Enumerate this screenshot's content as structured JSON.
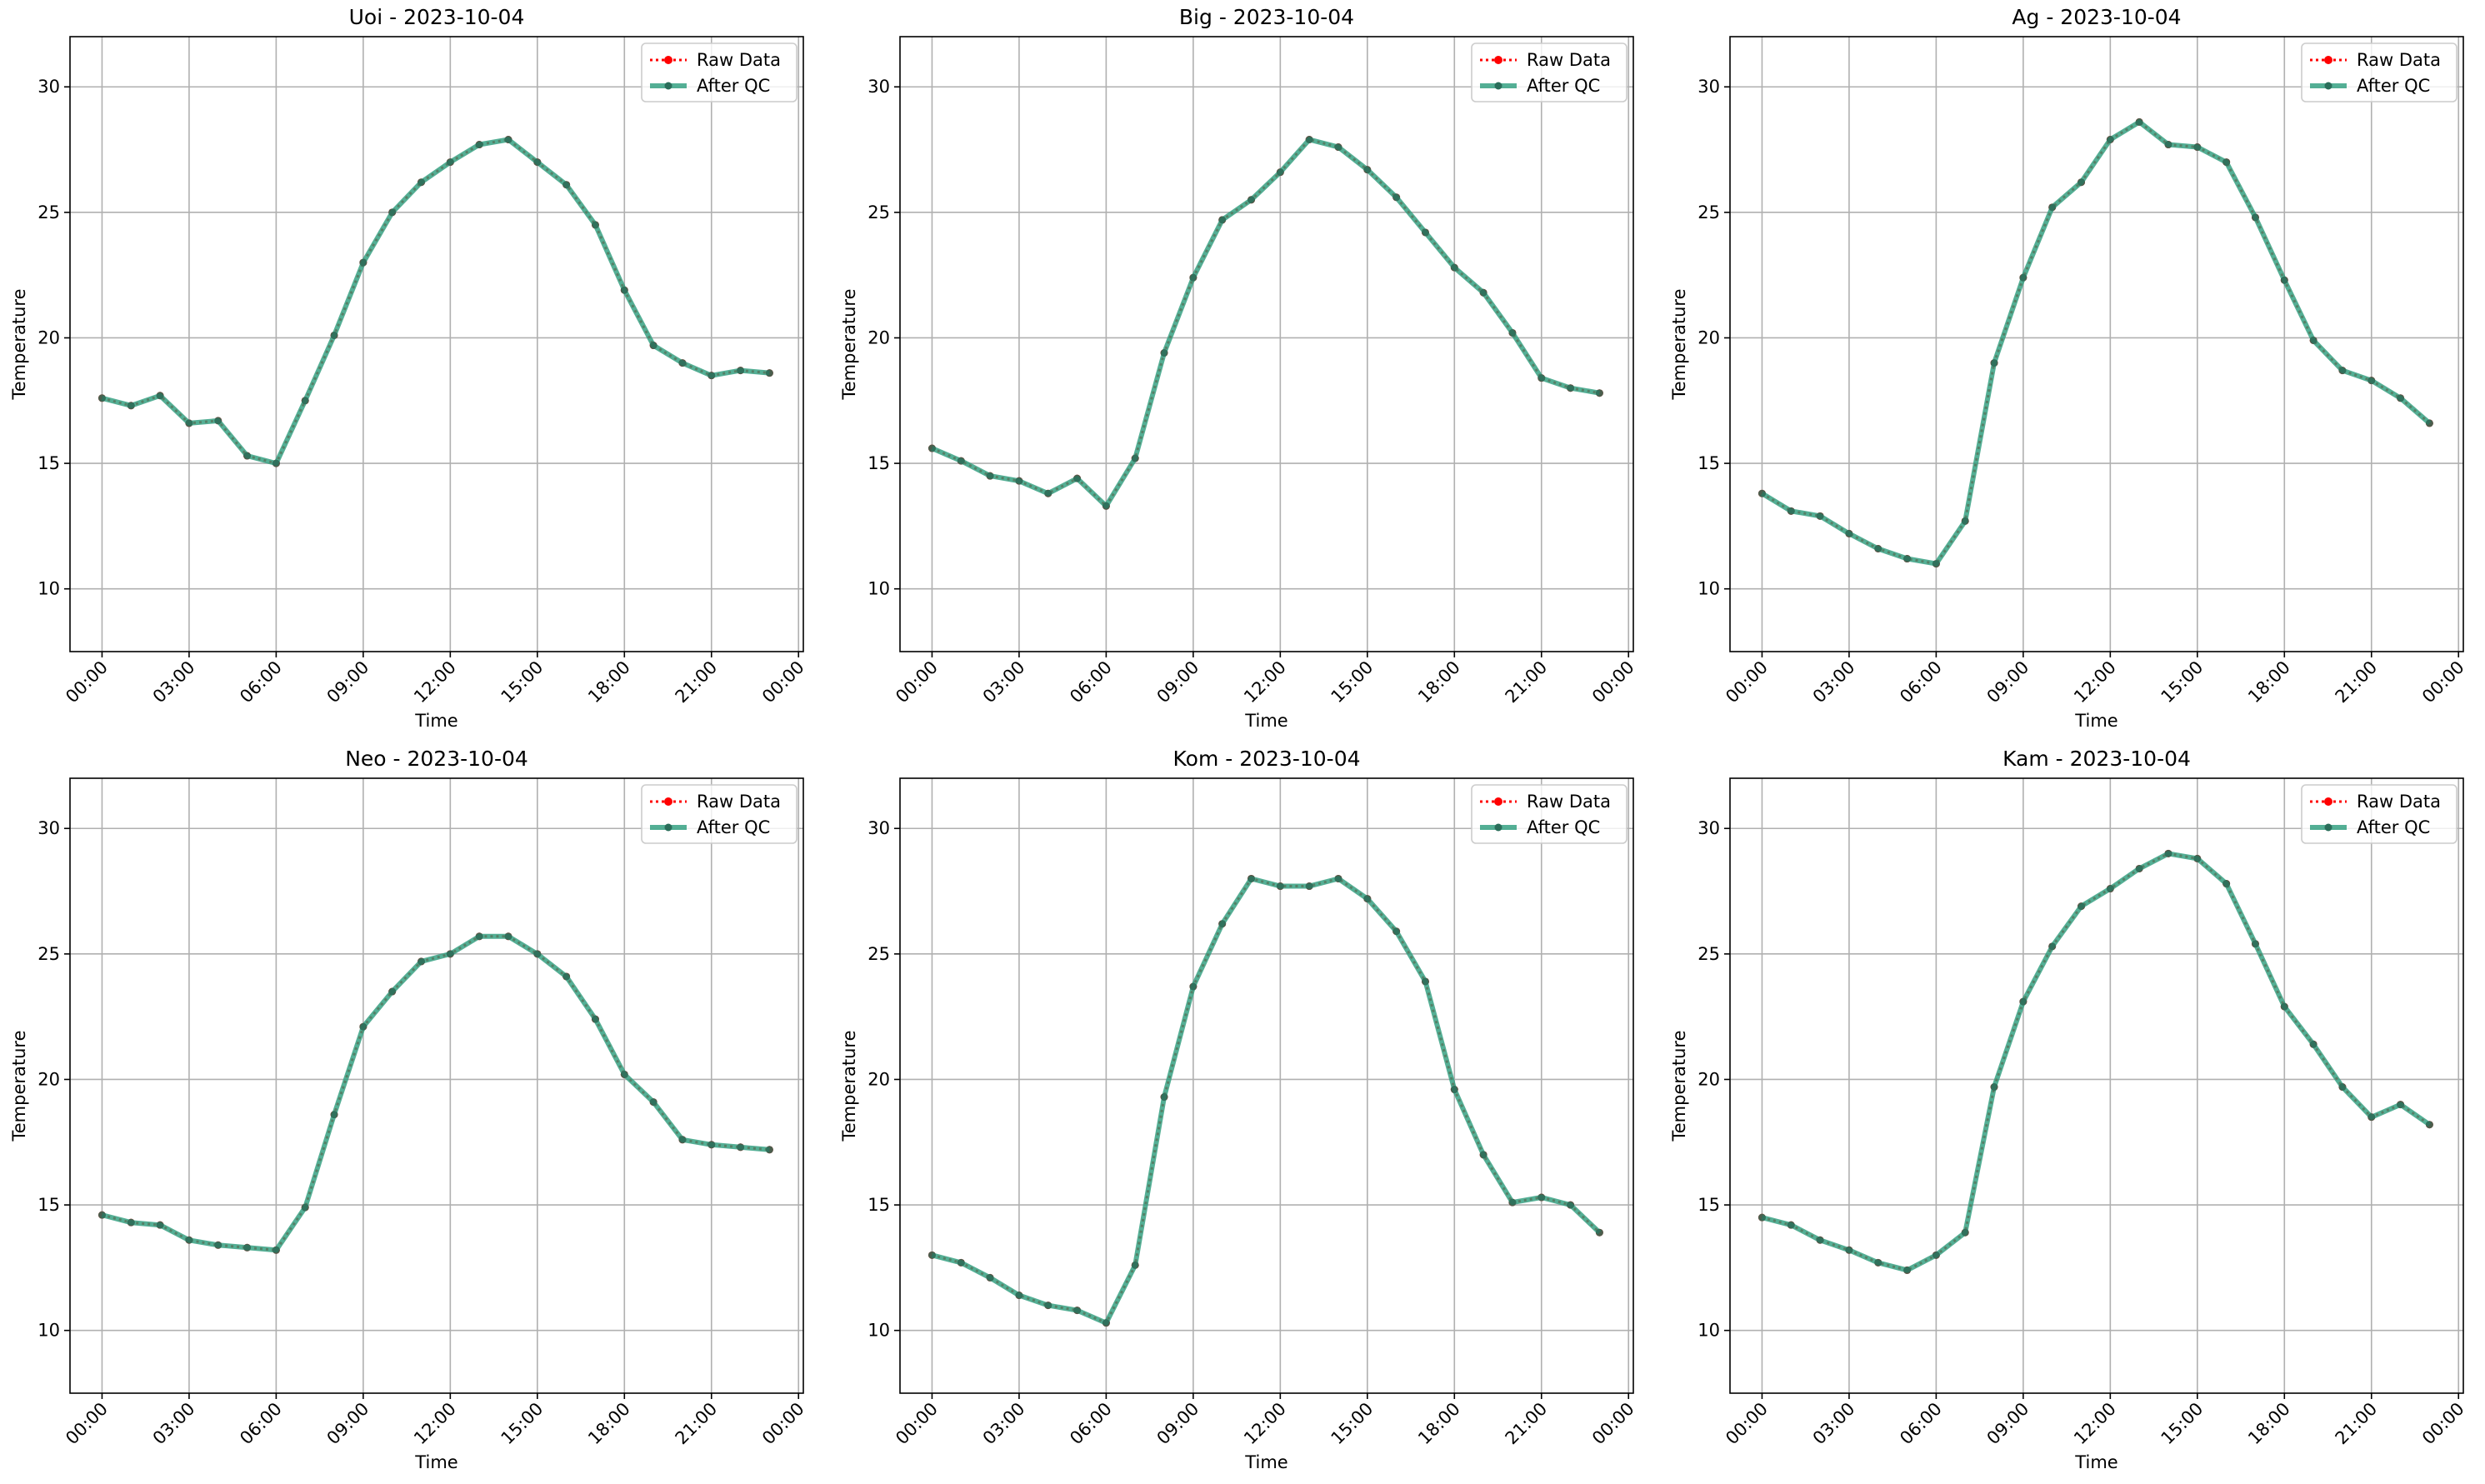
{
  "chart_data": [
    {
      "type": "line",
      "title": "Uoi - 2023-10-04",
      "xlabel": "Time",
      "ylabel": "Temperature",
      "x": [
        "00:00",
        "01:00",
        "02:00",
        "03:00",
        "04:00",
        "05:00",
        "06:00",
        "07:00",
        "08:00",
        "09:00",
        "10:00",
        "11:00",
        "12:00",
        "13:00",
        "14:00",
        "15:00",
        "16:00",
        "17:00",
        "18:00",
        "19:00",
        "20:00",
        "21:00",
        "22:00",
        "23:00"
      ],
      "xticks": [
        "00:00",
        "03:00",
        "06:00",
        "09:00",
        "12:00",
        "15:00",
        "18:00",
        "21:00",
        "00:00"
      ],
      "yticks": [
        "10",
        "15",
        "20",
        "25",
        "30"
      ],
      "ylim": [
        7.5,
        32
      ],
      "grid": true,
      "legend_position": "upper-right",
      "series": [
        {
          "name": "Raw Data",
          "color": "#ff0000",
          "values": [
            17.6,
            17.3,
            17.7,
            16.6,
            16.7,
            15.3,
            15.0,
            17.5,
            20.1,
            23.0,
            25.0,
            26.2,
            27.0,
            27.7,
            27.9,
            27.0,
            26.1,
            24.5,
            21.9,
            19.7,
            19.0,
            18.5,
            18.7,
            18.6
          ]
        },
        {
          "name": "After QC",
          "color": "#2e9e7e",
          "values": [
            17.6,
            17.3,
            17.7,
            16.6,
            16.7,
            15.3,
            15.0,
            17.5,
            20.1,
            23.0,
            25.0,
            26.2,
            27.0,
            27.7,
            27.9,
            27.0,
            26.1,
            24.5,
            21.9,
            19.7,
            19.0,
            18.5,
            18.7,
            18.6
          ]
        }
      ]
    },
    {
      "type": "line",
      "title": "Big - 2023-10-04",
      "xlabel": "Time",
      "ylabel": "Temperature",
      "x": [
        "00:00",
        "01:00",
        "02:00",
        "03:00",
        "04:00",
        "05:00",
        "06:00",
        "07:00",
        "08:00",
        "09:00",
        "10:00",
        "11:00",
        "12:00",
        "13:00",
        "14:00",
        "15:00",
        "16:00",
        "17:00",
        "18:00",
        "19:00",
        "20:00",
        "21:00",
        "22:00",
        "23:00"
      ],
      "xticks": [
        "00:00",
        "03:00",
        "06:00",
        "09:00",
        "12:00",
        "15:00",
        "18:00",
        "21:00",
        "00:00"
      ],
      "yticks": [
        "10",
        "15",
        "20",
        "25",
        "30"
      ],
      "ylim": [
        7.5,
        32
      ],
      "grid": true,
      "legend_position": "upper-right",
      "series": [
        {
          "name": "Raw Data",
          "color": "#ff0000",
          "values": [
            15.6,
            15.1,
            14.5,
            14.3,
            13.8,
            14.4,
            13.3,
            15.2,
            19.4,
            22.4,
            24.7,
            25.5,
            26.6,
            27.9,
            27.6,
            26.7,
            25.6,
            24.2,
            22.8,
            21.8,
            20.2,
            18.4,
            18.0,
            17.8
          ]
        },
        {
          "name": "After QC",
          "color": "#2e9e7e",
          "values": [
            15.6,
            15.1,
            14.5,
            14.3,
            13.8,
            14.4,
            13.3,
            15.2,
            19.4,
            22.4,
            24.7,
            25.5,
            26.6,
            27.9,
            27.6,
            26.7,
            25.6,
            24.2,
            22.8,
            21.8,
            20.2,
            18.4,
            18.0,
            17.8
          ]
        }
      ]
    },
    {
      "type": "line",
      "title": "Ag - 2023-10-04",
      "xlabel": "Time",
      "ylabel": "Temperature",
      "x": [
        "00:00",
        "01:00",
        "02:00",
        "03:00",
        "04:00",
        "05:00",
        "06:00",
        "07:00",
        "08:00",
        "09:00",
        "10:00",
        "11:00",
        "12:00",
        "13:00",
        "14:00",
        "15:00",
        "16:00",
        "17:00",
        "18:00",
        "19:00",
        "20:00",
        "21:00",
        "22:00",
        "23:00"
      ],
      "xticks": [
        "00:00",
        "03:00",
        "06:00",
        "09:00",
        "12:00",
        "15:00",
        "18:00",
        "21:00",
        "00:00"
      ],
      "yticks": [
        "10",
        "15",
        "20",
        "25",
        "30"
      ],
      "ylim": [
        7.5,
        32
      ],
      "grid": true,
      "legend_position": "upper-right",
      "series": [
        {
          "name": "Raw Data",
          "color": "#ff0000",
          "values": [
            13.8,
            13.1,
            12.9,
            12.2,
            11.6,
            11.2,
            11.0,
            12.7,
            19.0,
            22.4,
            25.2,
            26.2,
            27.9,
            28.6,
            27.7,
            27.6,
            27.0,
            24.8,
            22.3,
            19.9,
            18.7,
            18.3,
            17.6,
            16.6
          ]
        },
        {
          "name": "After QC",
          "color": "#2e9e7e",
          "values": [
            13.8,
            13.1,
            12.9,
            12.2,
            11.6,
            11.2,
            11.0,
            12.7,
            19.0,
            22.4,
            25.2,
            26.2,
            27.9,
            28.6,
            27.7,
            27.6,
            27.0,
            24.8,
            22.3,
            19.9,
            18.7,
            18.3,
            17.6,
            16.6
          ]
        }
      ]
    },
    {
      "type": "line",
      "title": "Neo - 2023-10-04",
      "xlabel": "Time",
      "ylabel": "Temperature",
      "x": [
        "00:00",
        "01:00",
        "02:00",
        "03:00",
        "04:00",
        "05:00",
        "06:00",
        "07:00",
        "08:00",
        "09:00",
        "10:00",
        "11:00",
        "12:00",
        "13:00",
        "14:00",
        "15:00",
        "16:00",
        "17:00",
        "18:00",
        "19:00",
        "20:00",
        "21:00",
        "22:00",
        "23:00"
      ],
      "xticks": [
        "00:00",
        "03:00",
        "06:00",
        "09:00",
        "12:00",
        "15:00",
        "18:00",
        "21:00",
        "00:00"
      ],
      "yticks": [
        "10",
        "15",
        "20",
        "25",
        "30"
      ],
      "ylim": [
        7.5,
        32
      ],
      "grid": true,
      "legend_position": "upper-right",
      "series": [
        {
          "name": "Raw Data",
          "color": "#ff0000",
          "values": [
            14.6,
            14.3,
            14.2,
            13.6,
            13.4,
            13.3,
            13.2,
            14.9,
            18.6,
            22.1,
            23.5,
            24.7,
            25.0,
            25.7,
            25.7,
            25.0,
            24.1,
            22.4,
            20.2,
            19.1,
            17.6,
            17.4,
            17.3,
            17.2
          ]
        },
        {
          "name": "After QC",
          "color": "#2e9e7e",
          "values": [
            14.6,
            14.3,
            14.2,
            13.6,
            13.4,
            13.3,
            13.2,
            14.9,
            18.6,
            22.1,
            23.5,
            24.7,
            25.0,
            25.7,
            25.7,
            25.0,
            24.1,
            22.4,
            20.2,
            19.1,
            17.6,
            17.4,
            17.3,
            17.2
          ]
        }
      ]
    },
    {
      "type": "line",
      "title": "Kom - 2023-10-04",
      "xlabel": "Time",
      "ylabel": "Temperature",
      "x": [
        "00:00",
        "01:00",
        "02:00",
        "03:00",
        "04:00",
        "05:00",
        "06:00",
        "07:00",
        "08:00",
        "09:00",
        "10:00",
        "11:00",
        "12:00",
        "13:00",
        "14:00",
        "15:00",
        "16:00",
        "17:00",
        "18:00",
        "19:00",
        "20:00",
        "21:00",
        "22:00",
        "23:00"
      ],
      "xticks": [
        "00:00",
        "03:00",
        "06:00",
        "09:00",
        "12:00",
        "15:00",
        "18:00",
        "21:00",
        "00:00"
      ],
      "yticks": [
        "10",
        "15",
        "20",
        "25",
        "30"
      ],
      "ylim": [
        7.5,
        32
      ],
      "grid": true,
      "legend_position": "upper-right",
      "series": [
        {
          "name": "Raw Data",
          "color": "#ff0000",
          "values": [
            13.0,
            12.7,
            12.1,
            11.4,
            11.0,
            10.8,
            10.3,
            12.6,
            19.3,
            23.7,
            26.2,
            28.0,
            27.7,
            27.7,
            28.0,
            27.2,
            25.9,
            23.9,
            19.6,
            17.0,
            15.1,
            15.3,
            15.0,
            13.9
          ]
        },
        {
          "name": "After QC",
          "color": "#2e9e7e",
          "values": [
            13.0,
            12.7,
            12.1,
            11.4,
            11.0,
            10.8,
            10.3,
            12.6,
            19.3,
            23.7,
            26.2,
            28.0,
            27.7,
            27.7,
            28.0,
            27.2,
            25.9,
            23.9,
            19.6,
            17.0,
            15.1,
            15.3,
            15.0,
            13.9
          ]
        }
      ]
    },
    {
      "type": "line",
      "title": "Kam - 2023-10-04",
      "xlabel": "Time",
      "ylabel": "Temperature",
      "x": [
        "00:00",
        "01:00",
        "02:00",
        "03:00",
        "04:00",
        "05:00",
        "06:00",
        "07:00",
        "08:00",
        "09:00",
        "10:00",
        "11:00",
        "12:00",
        "13:00",
        "14:00",
        "15:00",
        "16:00",
        "17:00",
        "18:00",
        "19:00",
        "20:00",
        "21:00",
        "22:00",
        "23:00"
      ],
      "xticks": [
        "00:00",
        "03:00",
        "06:00",
        "09:00",
        "12:00",
        "15:00",
        "18:00",
        "21:00",
        "00:00"
      ],
      "yticks": [
        "10",
        "15",
        "20",
        "25",
        "30"
      ],
      "ylim": [
        7.5,
        32
      ],
      "grid": true,
      "legend_position": "upper-right",
      "series": [
        {
          "name": "Raw Data",
          "color": "#ff0000",
          "values": [
            14.5,
            14.2,
            13.6,
            13.2,
            12.7,
            12.4,
            13.0,
            13.9,
            19.7,
            23.1,
            25.3,
            26.9,
            27.6,
            28.4,
            29.0,
            28.8,
            27.8,
            25.4,
            22.9,
            21.4,
            19.7,
            18.5,
            19.0,
            18.2
          ]
        },
        {
          "name": "After QC",
          "color": "#2e9e7e",
          "values": [
            14.5,
            14.2,
            13.6,
            13.2,
            12.7,
            12.4,
            13.0,
            13.9,
            19.7,
            23.1,
            25.3,
            26.9,
            27.6,
            28.4,
            29.0,
            28.8,
            27.8,
            25.4,
            22.9,
            21.4,
            19.7,
            18.5,
            19.0,
            18.2
          ]
        }
      ]
    }
  ]
}
